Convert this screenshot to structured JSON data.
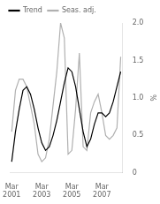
{
  "chart_data": {
    "type": "line",
    "categories": [
      "Mar\n2001",
      null,
      null,
      null,
      null,
      null,
      null,
      null,
      "Mar\n2003",
      null,
      null,
      null,
      null,
      null,
      null,
      null,
      "Mar\n2005",
      null,
      null,
      null,
      null,
      null,
      null,
      null,
      "Mar\n2007",
      null,
      null,
      null,
      null,
      null
    ],
    "series": [
      {
        "name": "Trend",
        "color": "#000000",
        "values": [
          0.15,
          0.55,
          0.85,
          1.1,
          1.15,
          1.05,
          0.85,
          0.6,
          0.4,
          0.3,
          0.35,
          0.5,
          0.7,
          0.95,
          1.2,
          1.4,
          1.35,
          1.15,
          0.85,
          0.55,
          0.35,
          0.45,
          0.65,
          0.8,
          0.8,
          0.75,
          0.8,
          0.95,
          1.15,
          1.35
        ]
      },
      {
        "name": "Seas. adj.",
        "color": "#b0b0b0",
        "values": [
          0.55,
          1.1,
          1.25,
          1.25,
          1.15,
          0.9,
          0.65,
          0.25,
          0.15,
          0.2,
          0.45,
          0.9,
          1.35,
          2.0,
          1.8,
          0.25,
          0.3,
          0.85,
          1.6,
          0.35,
          0.3,
          0.8,
          0.95,
          1.05,
          0.8,
          0.5,
          0.45,
          0.5,
          0.6,
          1.55
        ]
      }
    ],
    "ylabel": "%",
    "ylim": [
      0,
      2.0
    ],
    "yticks": [
      0,
      0.5,
      {
        "value": 1.0,
        "label": "1.0"
      },
      {
        "value": 1.5,
        "label": "1.5"
      },
      {
        "value": 2.0,
        "label": "2.0"
      }
    ],
    "grid": false,
    "legend": "upper left"
  }
}
